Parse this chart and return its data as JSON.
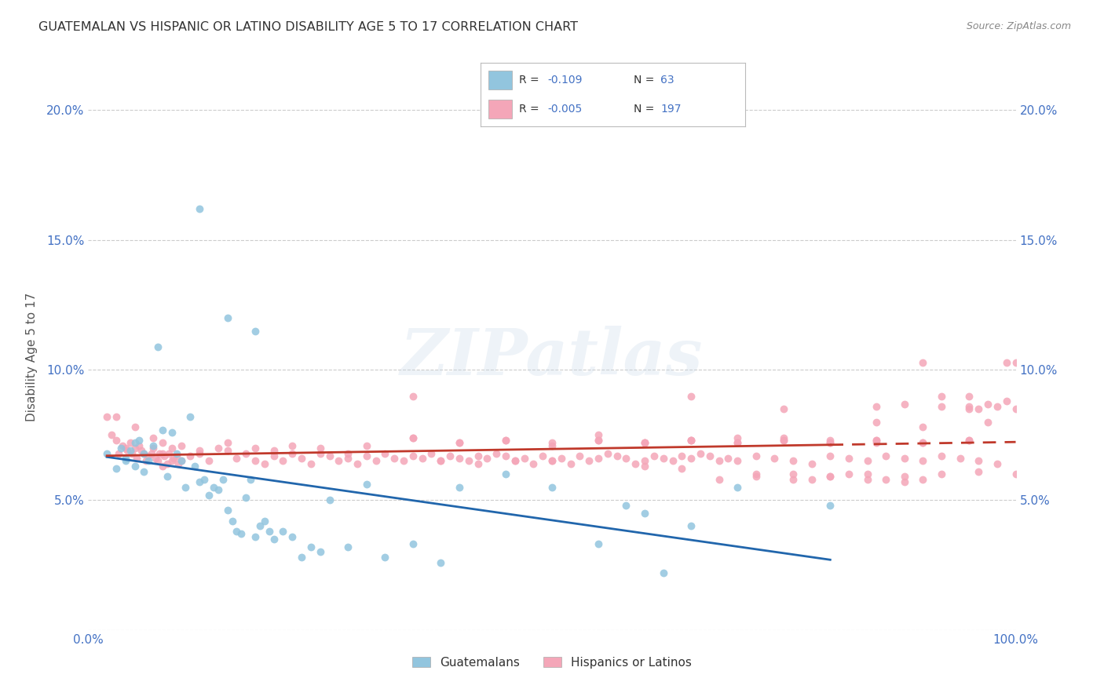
{
  "title": "GUATEMALAN VS HISPANIC OR LATINO DISABILITY AGE 5 TO 17 CORRELATION CHART",
  "source": "Source: ZipAtlas.com",
  "ylabel": "Disability Age 5 to 17",
  "xlim": [
    0.0,
    1.0
  ],
  "ylim": [
    0.0,
    0.21
  ],
  "yticks": [
    0.0,
    0.05,
    0.1,
    0.15,
    0.2
  ],
  "ytick_labels": [
    "",
    "5.0%",
    "10.0%",
    "15.0%",
    "20.0%"
  ],
  "xticks": [
    0.0,
    0.1,
    0.2,
    0.3,
    0.4,
    0.5,
    0.6,
    0.7,
    0.8,
    0.9,
    1.0
  ],
  "xtick_labels": [
    "0.0%",
    "",
    "",
    "",
    "",
    "",
    "",
    "",
    "",
    "",
    "100.0%"
  ],
  "legend_labels": [
    "Guatemalans",
    "Hispanics or Latinos"
  ],
  "legend_r_guatemalan": "-0.109",
  "legend_n_guatemalan": "63",
  "legend_r_hispanic": "-0.005",
  "legend_n_hispanic": "197",
  "blue_color": "#92c5de",
  "pink_color": "#f4a6b8",
  "trend_blue_color": "#2166ac",
  "trend_pink_color": "#c0392b",
  "background_color": "#ffffff",
  "grid_color": "#cccccc",
  "title_color": "#333333",
  "axis_label_color": "#555555",
  "source_color": "#888888",
  "watermark": "ZIPatlas",
  "guatemalan_x": [
    0.02,
    0.03,
    0.035,
    0.04,
    0.04,
    0.045,
    0.05,
    0.05,
    0.055,
    0.06,
    0.06,
    0.065,
    0.07,
    0.075,
    0.08,
    0.085,
    0.09,
    0.095,
    0.1,
    0.105,
    0.11,
    0.115,
    0.12,
    0.12,
    0.125,
    0.13,
    0.135,
    0.14,
    0.145,
    0.15,
    0.15,
    0.155,
    0.16,
    0.165,
    0.17,
    0.175,
    0.18,
    0.18,
    0.185,
    0.19,
    0.195,
    0.2,
    0.21,
    0.22,
    0.23,
    0.24,
    0.25,
    0.26,
    0.28,
    0.3,
    0.32,
    0.35,
    0.38,
    0.4,
    0.45,
    0.5,
    0.55,
    0.58,
    0.6,
    0.62,
    0.65,
    0.7,
    0.8
  ],
  "guatemalan_y": [
    0.068,
    0.062,
    0.07,
    0.065,
    0.066,
    0.069,
    0.063,
    0.072,
    0.073,
    0.068,
    0.061,
    0.065,
    0.071,
    0.109,
    0.077,
    0.059,
    0.076,
    0.068,
    0.065,
    0.055,
    0.082,
    0.063,
    0.057,
    0.162,
    0.058,
    0.052,
    0.055,
    0.054,
    0.058,
    0.046,
    0.12,
    0.042,
    0.038,
    0.037,
    0.051,
    0.058,
    0.036,
    0.115,
    0.04,
    0.042,
    0.038,
    0.035,
    0.038,
    0.036,
    0.028,
    0.032,
    0.03,
    0.05,
    0.032,
    0.056,
    0.028,
    0.033,
    0.026,
    0.055,
    0.06,
    0.055,
    0.033,
    0.048,
    0.045,
    0.022,
    0.04,
    0.055,
    0.048
  ],
  "hispanic_x": [
    0.02,
    0.025,
    0.03,
    0.033,
    0.037,
    0.04,
    0.042,
    0.045,
    0.047,
    0.05,
    0.052,
    0.055,
    0.057,
    0.06,
    0.062,
    0.065,
    0.068,
    0.07,
    0.072,
    0.075,
    0.077,
    0.08,
    0.082,
    0.085,
    0.087,
    0.09,
    0.092,
    0.095,
    0.097,
    0.1,
    0.11,
    0.12,
    0.13,
    0.14,
    0.15,
    0.16,
    0.17,
    0.18,
    0.19,
    0.2,
    0.21,
    0.22,
    0.23,
    0.24,
    0.25,
    0.26,
    0.27,
    0.28,
    0.29,
    0.3,
    0.31,
    0.32,
    0.33,
    0.34,
    0.35,
    0.36,
    0.37,
    0.38,
    0.39,
    0.4,
    0.41,
    0.42,
    0.43,
    0.44,
    0.45,
    0.46,
    0.47,
    0.48,
    0.49,
    0.5,
    0.51,
    0.52,
    0.53,
    0.54,
    0.55,
    0.56,
    0.57,
    0.58,
    0.59,
    0.6,
    0.61,
    0.62,
    0.63,
    0.64,
    0.65,
    0.66,
    0.67,
    0.68,
    0.69,
    0.7,
    0.72,
    0.74,
    0.76,
    0.78,
    0.8,
    0.82,
    0.84,
    0.86,
    0.88,
    0.9,
    0.92,
    0.94,
    0.96,
    0.98,
    1.0,
    0.35,
    0.55,
    0.65,
    0.75,
    0.85,
    0.9,
    0.92,
    0.95,
    0.97,
    0.99,
    0.03,
    0.05,
    0.07,
    0.08,
    0.09,
    0.1,
    0.15,
    0.2,
    0.25,
    0.3,
    0.35,
    0.4,
    0.45,
    0.5,
    0.55,
    0.6,
    0.65,
    0.7,
    0.75,
    0.8,
    0.85,
    0.9,
    0.95,
    0.08,
    0.12,
    0.18,
    0.22,
    0.28,
    0.35,
    0.4,
    0.45,
    0.5,
    0.55,
    0.6,
    0.65,
    0.7,
    0.75,
    0.8,
    0.85,
    0.9,
    0.95,
    0.6,
    0.65,
    0.7,
    0.75,
    0.8,
    0.85,
    0.9,
    0.95,
    1.0,
    0.95,
    0.97,
    0.99,
    0.85,
    0.88,
    0.92,
    0.96,
    0.98,
    0.78,
    0.82,
    0.86,
    0.88,
    0.9,
    0.72,
    0.76,
    0.8,
    0.84,
    0.6,
    0.64,
    0.68,
    0.72,
    0.76,
    0.8,
    0.84,
    0.88,
    0.92,
    0.96,
    1.0,
    0.38,
    0.42,
    0.46,
    0.5
  ],
  "hispanic_y": [
    0.082,
    0.075,
    0.073,
    0.068,
    0.071,
    0.07,
    0.069,
    0.072,
    0.068,
    0.07,
    0.066,
    0.071,
    0.069,
    0.068,
    0.065,
    0.067,
    0.068,
    0.07,
    0.066,
    0.065,
    0.068,
    0.063,
    0.067,
    0.064,
    0.068,
    0.065,
    0.066,
    0.067,
    0.064,
    0.065,
    0.067,
    0.068,
    0.065,
    0.07,
    0.069,
    0.066,
    0.068,
    0.065,
    0.064,
    0.067,
    0.065,
    0.068,
    0.066,
    0.064,
    0.068,
    0.067,
    0.065,
    0.066,
    0.064,
    0.067,
    0.065,
    0.068,
    0.066,
    0.065,
    0.067,
    0.066,
    0.068,
    0.065,
    0.067,
    0.066,
    0.065,
    0.067,
    0.066,
    0.068,
    0.067,
    0.065,
    0.066,
    0.064,
    0.067,
    0.065,
    0.066,
    0.064,
    0.067,
    0.065,
    0.066,
    0.068,
    0.067,
    0.066,
    0.064,
    0.065,
    0.067,
    0.066,
    0.065,
    0.067,
    0.066,
    0.068,
    0.067,
    0.065,
    0.066,
    0.065,
    0.067,
    0.066,
    0.065,
    0.064,
    0.067,
    0.066,
    0.065,
    0.067,
    0.066,
    0.065,
    0.067,
    0.066,
    0.065,
    0.064,
    0.103,
    0.09,
    0.075,
    0.09,
    0.085,
    0.08,
    0.078,
    0.09,
    0.085,
    0.08,
    0.103,
    0.082,
    0.078,
    0.074,
    0.072,
    0.07,
    0.071,
    0.072,
    0.069,
    0.07,
    0.071,
    0.074,
    0.072,
    0.073,
    0.071,
    0.073,
    0.072,
    0.073,
    0.072,
    0.073,
    0.072,
    0.073,
    0.072,
    0.073,
    0.068,
    0.069,
    0.07,
    0.071,
    0.068,
    0.074,
    0.072,
    0.073,
    0.072,
    0.073,
    0.072,
    0.073,
    0.074,
    0.073,
    0.072,
    0.073,
    0.072,
    0.073,
    0.072,
    0.073,
    0.072,
    0.074,
    0.073,
    0.072,
    0.103,
    0.09,
    0.085,
    0.086,
    0.087,
    0.088,
    0.086,
    0.087,
    0.086,
    0.085,
    0.086,
    0.058,
    0.06,
    0.058,
    0.057,
    0.058,
    0.06,
    0.058,
    0.059,
    0.06,
    0.063,
    0.062,
    0.058,
    0.059,
    0.06,
    0.059,
    0.058,
    0.059,
    0.06,
    0.061,
    0.06,
    0.065,
    0.064,
    0.065,
    0.065
  ]
}
